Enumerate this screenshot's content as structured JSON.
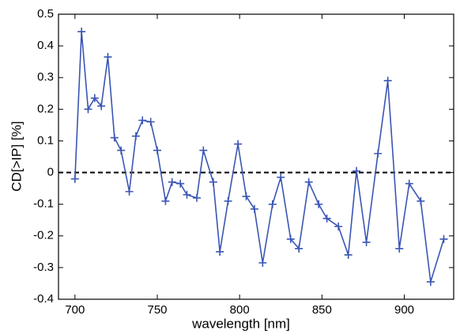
{
  "chart_data": {
    "type": "line",
    "xlabel": "wavelength [nm]",
    "ylabel": "CD[>IP] [%]",
    "x": [
      700,
      704,
      708,
      712,
      716,
      720,
      724,
      728,
      733,
      737,
      741,
      746,
      750,
      755,
      759,
      764,
      768,
      774,
      778,
      784,
      788,
      793,
      799,
      804,
      809,
      814,
      820,
      825,
      831,
      836,
      842,
      848,
      853,
      860,
      866,
      871,
      877,
      884,
      890,
      897,
      903,
      910,
      916,
      924
    ],
    "series": [
      {
        "color": "#3a55b4",
        "marker": "+",
        "values": [
          -0.02,
          0.445,
          0.2,
          0.235,
          0.21,
          0.365,
          0.11,
          0.07,
          -0.06,
          0.115,
          0.165,
          0.16,
          0.07,
          -0.09,
          -0.03,
          -0.035,
          -0.07,
          -0.08,
          0.07,
          -0.03,
          -0.25,
          -0.09,
          0.09,
          -0.075,
          -0.115,
          -0.285,
          -0.1,
          -0.015,
          -0.21,
          -0.24,
          -0.03,
          -0.1,
          -0.145,
          -0.17,
          -0.26,
          0.005,
          -0.22,
          0.06,
          0.29,
          -0.24,
          -0.035,
          -0.09,
          -0.345,
          -0.21
        ]
      }
    ],
    "xlim": [
      690,
      930
    ],
    "xticks": [
      700,
      750,
      800,
      850,
      900
    ],
    "ylim": [
      -0.4,
      0.5
    ],
    "yticks": [
      -0.4,
      -0.3,
      -0.2,
      -0.1,
      0,
      0.1,
      0.2,
      0.3,
      0.4,
      0.5
    ],
    "reference_line": 0,
    "grid": false
  }
}
